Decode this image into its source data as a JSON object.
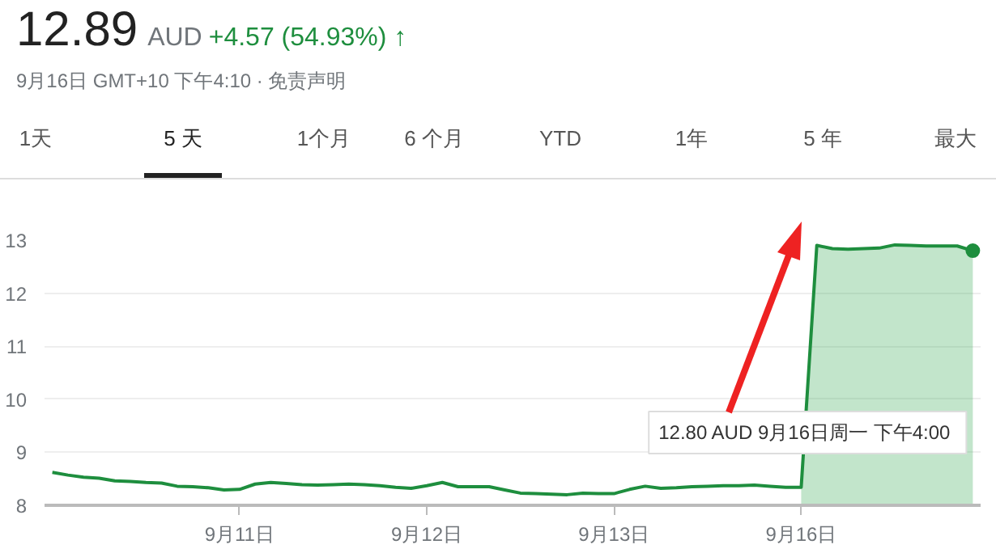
{
  "chart_data": {
    "type": "line",
    "title": "12.89",
    "subtitle": "9月16日 GMT+10 下午4:10 · 免责声明",
    "annotations": [
      "AUD",
      "+4.57 (54.93%) ↑",
      "1天",
      "5 天",
      "1个月",
      "6 个月",
      "YTD",
      "1年",
      "5 年",
      "最大",
      "12.80 AUD  9月16日周一 下午4:00"
    ],
    "categories": [
      null,
      null,
      null,
      null,
      null,
      null,
      null,
      null,
      null,
      null,
      null,
      null,
      "9月11日",
      null,
      null,
      null,
      null,
      null,
      null,
      null,
      null,
      null,
      null,
      null,
      "9月12日",
      null,
      null,
      null,
      null,
      null,
      null,
      null,
      null,
      null,
      null,
      null,
      "9月13日",
      null,
      null,
      null,
      null,
      null,
      null,
      null,
      null,
      null,
      null,
      null,
      "9月16日",
      null,
      null,
      null,
      null,
      null,
      null,
      null,
      null,
      null,
      null,
      null
    ],
    "series": [
      {
        "color": "#1e8e3e",
        "values": [
          8.62,
          8.57,
          8.53,
          8.51,
          8.46,
          8.45,
          8.43,
          8.42,
          8.36,
          8.35,
          8.33,
          8.29,
          8.3,
          8.4,
          8.43,
          8.41,
          8.39,
          8.38,
          8.39,
          8.4,
          8.39,
          8.37,
          8.34,
          8.32,
          8.37,
          8.43,
          8.35,
          8.35,
          8.35,
          8.29,
          8.23,
          8.22,
          8.21,
          8.2,
          8.23,
          8.22,
          8.22,
          8.3,
          8.36,
          8.32,
          8.33,
          8.35,
          8.36,
          8.37,
          8.37,
          8.38,
          8.36,
          8.34,
          8.34,
          12.9,
          12.84,
          12.83,
          12.84,
          12.85,
          12.91,
          12.9,
          12.89,
          12.89,
          12.89,
          12.8
        ]
      },
      {
        "type": "area",
        "color": "#34a853",
        "values": [
          null,
          null,
          null,
          null,
          null,
          null,
          null,
          null,
          null,
          null,
          null,
          null,
          null,
          null,
          null,
          null,
          null,
          null,
          null,
          null,
          null,
          null,
          null,
          null,
          null,
          null,
          null,
          null,
          null,
          null,
          null,
          null,
          null,
          null,
          null,
          null,
          null,
          null,
          null,
          null,
          null,
          null,
          null,
          null,
          null,
          null,
          null,
          null,
          8.34,
          12.9,
          12.84,
          12.83,
          12.84,
          12.85,
          12.91,
          12.9,
          12.89,
          12.89,
          12.89,
          12.8
        ]
      }
    ],
    "ylim": [
      8,
      13
    ],
    "yticks": [
      8,
      9,
      10,
      11,
      12,
      13
    ],
    "grid": "y"
  }
}
